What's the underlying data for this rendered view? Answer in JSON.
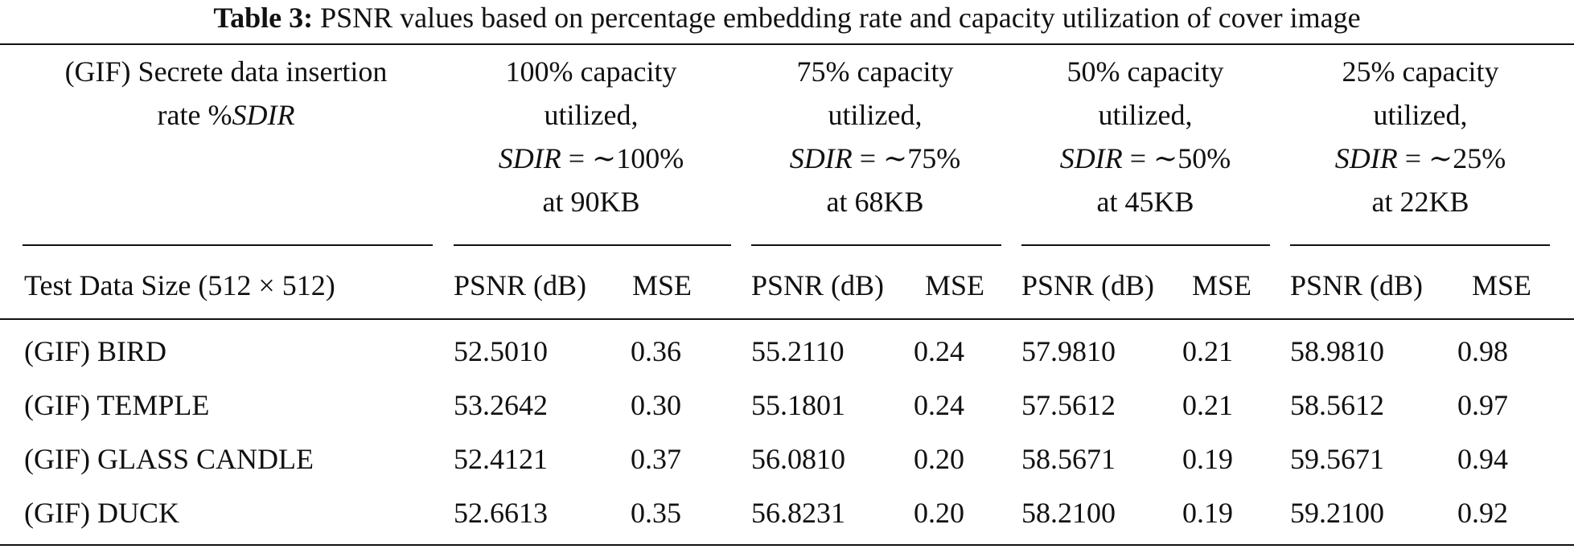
{
  "caption": {
    "label": "Table 3:",
    "text": "PSNR values based on percentage embedding rate and capacity utilization of cover image"
  },
  "header": {
    "row_label": {
      "line1": "(GIF) Secrete data insertion",
      "line2_prefix": "rate %",
      "line2_italic": "SDIR"
    },
    "groups": [
      {
        "line1": "100% capacity",
        "line2": "utilized,",
        "sdir_var": "SDIR",
        "sdir_expr": " = ∼100%",
        "line4": "at 90KB"
      },
      {
        "line1": "75% capacity",
        "line2": "utilized,",
        "sdir_var": "SDIR",
        "sdir_expr": " = ∼75%",
        "line4": "at 68KB"
      },
      {
        "line1": "50% capacity",
        "line2": "utilized,",
        "sdir_var": "SDIR",
        "sdir_expr": " = ∼50%",
        "line4": "at 45KB"
      },
      {
        "line1": "25% capacity",
        "line2": "utilized,",
        "sdir_var": "SDIR",
        "sdir_expr": " = ∼25%",
        "line4": "at 22KB"
      }
    ],
    "subheader": {
      "test_label": "Test Data Size (512 × 512)",
      "psnr": "PSNR (dB)",
      "mse": "MSE"
    }
  },
  "rows": [
    {
      "name": "(GIF) BIRD",
      "values": [
        "52.5010",
        "0.36",
        "55.2110",
        "0.24",
        "57.9810",
        "0.21",
        "58.9810",
        "0.98"
      ]
    },
    {
      "name": "(GIF) TEMPLE",
      "values": [
        "53.2642",
        "0.30",
        "55.1801",
        "0.24",
        "57.5612",
        "0.21",
        "58.5612",
        "0.97"
      ]
    },
    {
      "name": "(GIF) GLASS CANDLE",
      "values": [
        "52.4121",
        "0.37",
        "56.0810",
        "0.20",
        "58.5671",
        "0.19",
        "59.5671",
        "0.94"
      ]
    },
    {
      "name": "(GIF) DUCK",
      "values": [
        "52.6613",
        "0.35",
        "56.8231",
        "0.20",
        "58.2100",
        "0.19",
        "59.2100",
        "0.92"
      ]
    }
  ]
}
